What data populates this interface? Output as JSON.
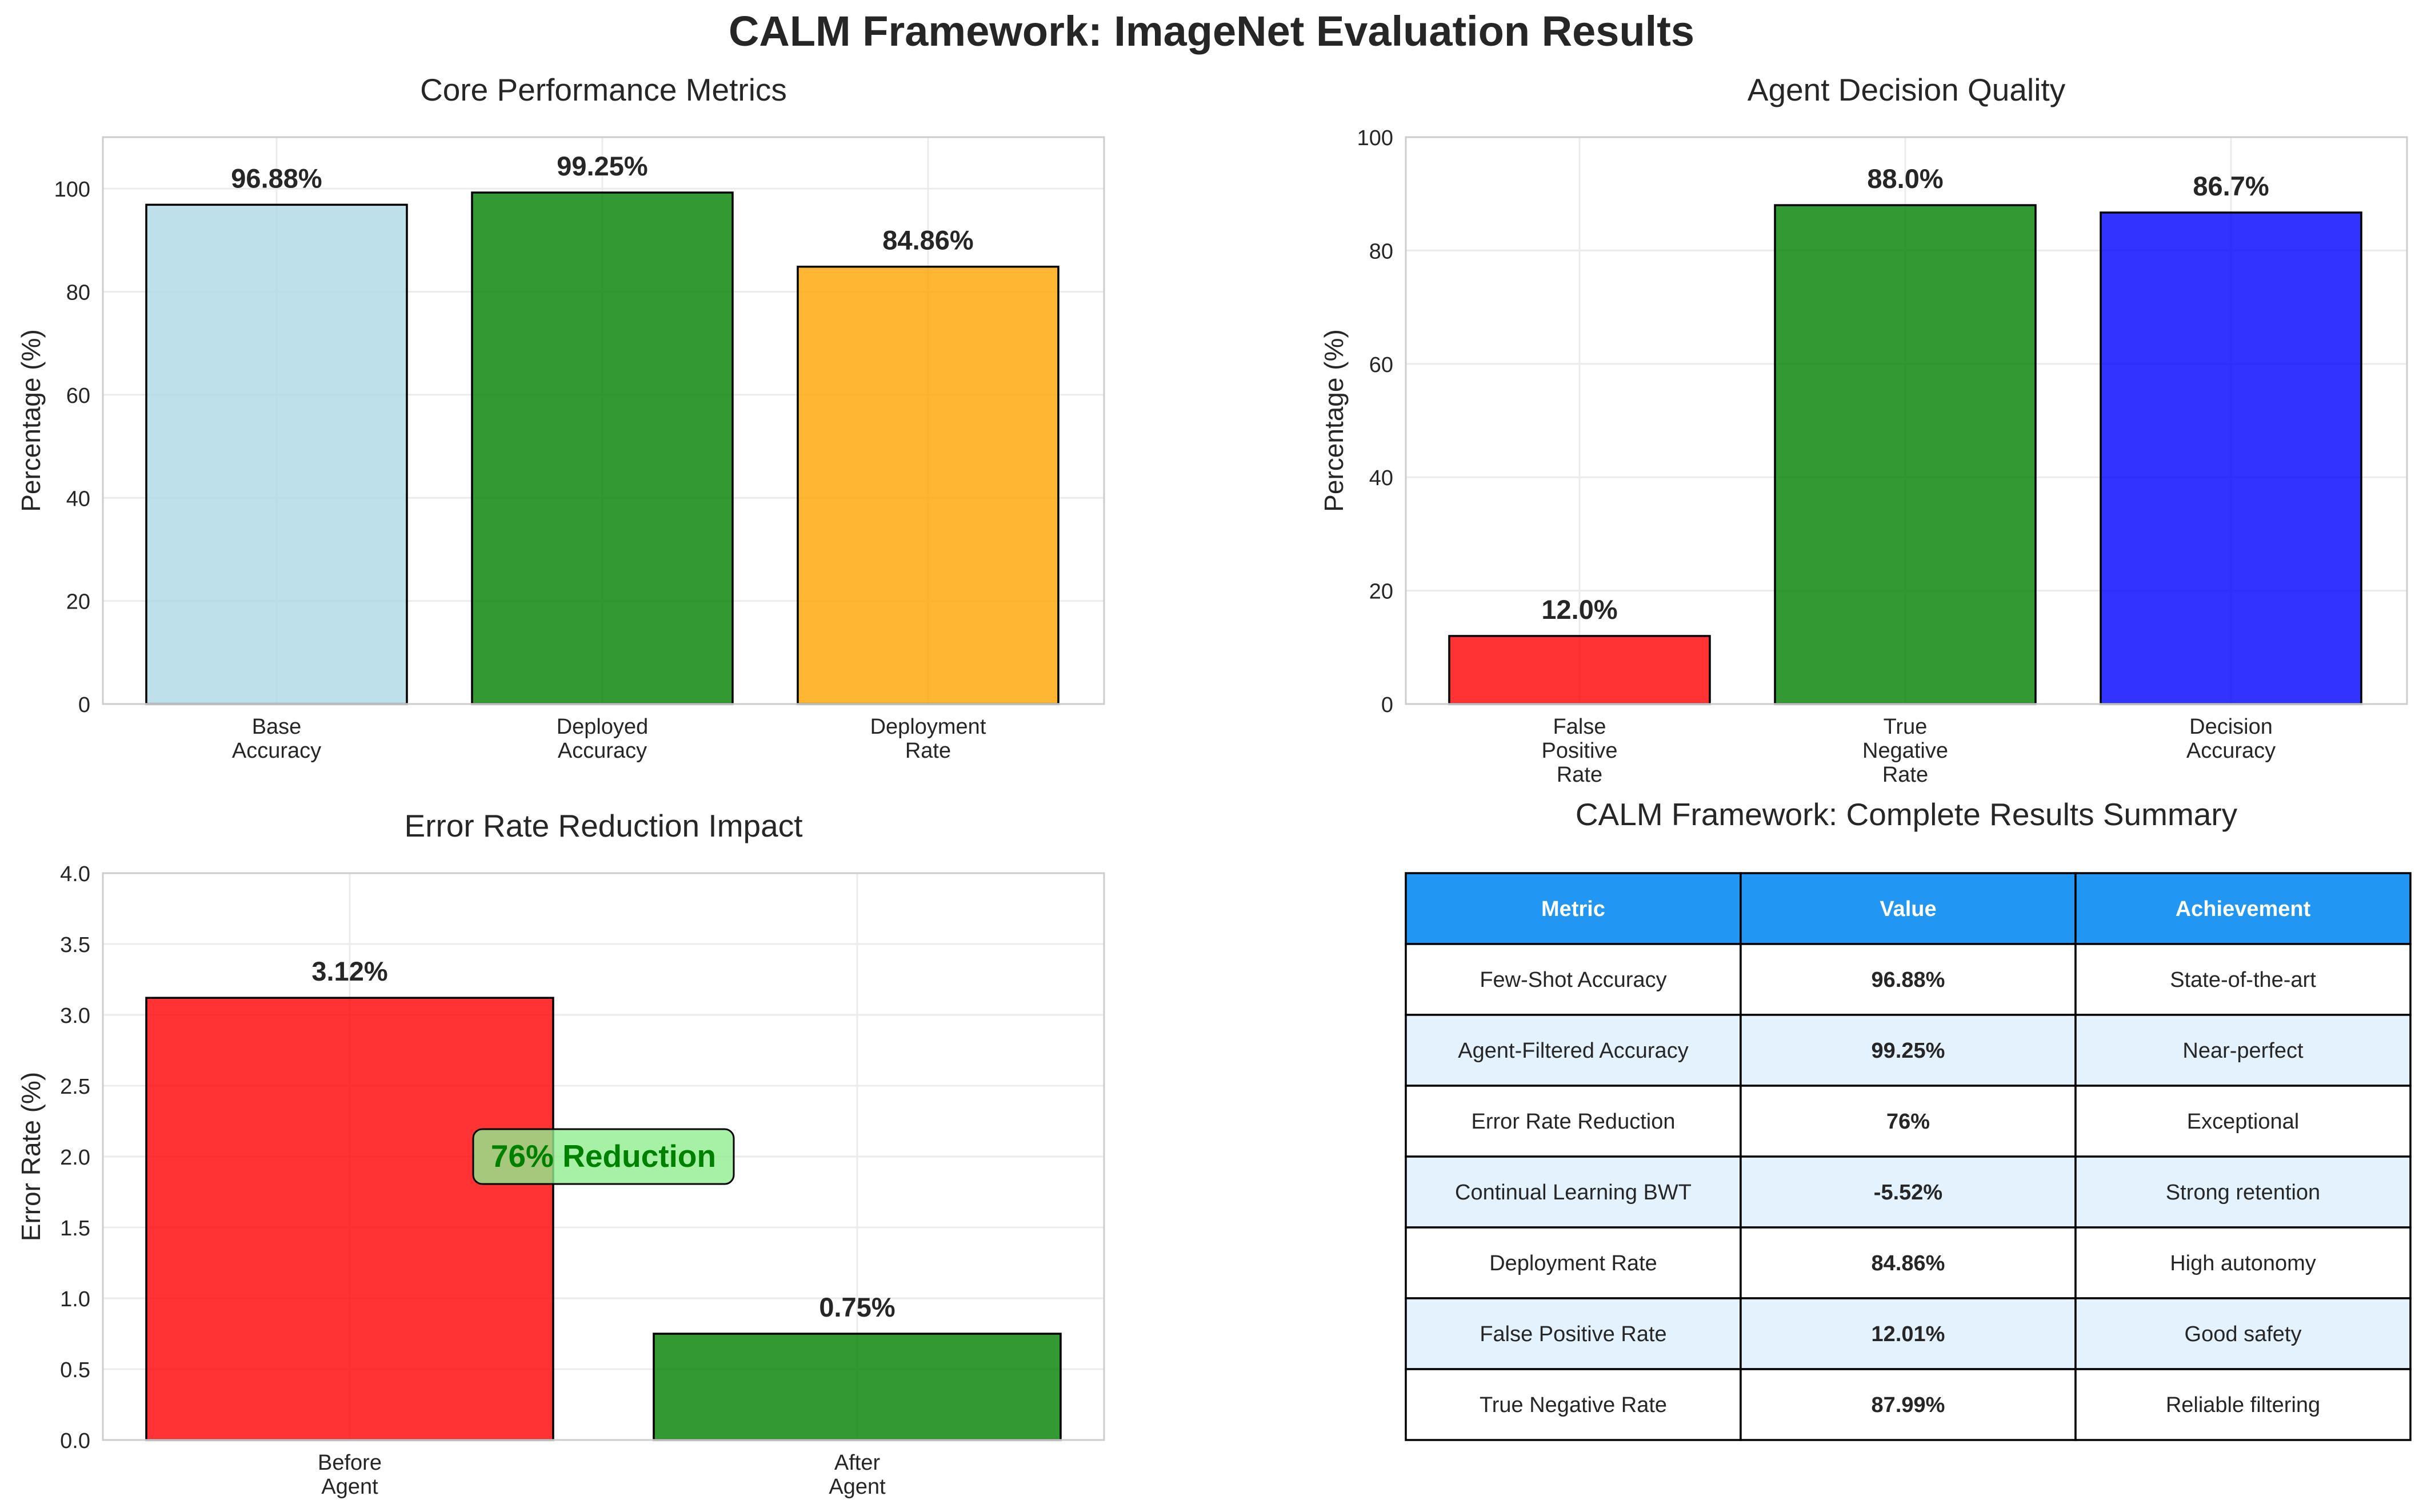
{
  "suptitle": "CALM Framework: ImageNet Evaluation Results",
  "chart_data": [
    {
      "id": "core",
      "type": "bar",
      "title": "Core Performance Metrics",
      "ylabel": "Percentage (%)",
      "xlabel": "",
      "ylim": [
        0,
        110
      ],
      "yticks": [
        0,
        20,
        40,
        60,
        80,
        100
      ],
      "grid": true,
      "categories": [
        "Base\nAccuracy",
        "Deployed\nAccuracy",
        "Deployment\nRate"
      ],
      "values": [
        96.88,
        99.25,
        84.86
      ],
      "labels": [
        "96.88%",
        "99.25%",
        "84.86%"
      ],
      "colors": [
        "#add8e6",
        "#008000",
        "#ffa500"
      ]
    },
    {
      "id": "agent",
      "type": "bar",
      "title": "Agent Decision Quality",
      "ylabel": "Percentage (%)",
      "xlabel": "",
      "ylim": [
        0,
        100
      ],
      "yticks": [
        0,
        20,
        40,
        60,
        80,
        100
      ],
      "grid": true,
      "categories": [
        "False\nPositive\nRate",
        "True\nNegative\nRate",
        "Decision\nAccuracy"
      ],
      "values": [
        12.0,
        88.0,
        86.7
      ],
      "labels": [
        "12.0%",
        "88.0%",
        "86.7%"
      ],
      "colors": [
        "#ff0000",
        "#008000",
        "#0000ff"
      ]
    },
    {
      "id": "error",
      "type": "bar",
      "title": "Error Rate Reduction Impact",
      "ylabel": "Error Rate (%)",
      "xlabel": "",
      "ylim": [
        0,
        4.0
      ],
      "yticks": [
        0.0,
        0.5,
        1.0,
        1.5,
        2.0,
        2.5,
        3.0,
        3.5,
        4.0
      ],
      "grid": true,
      "categories": [
        "Before\nAgent",
        "After\nAgent"
      ],
      "values": [
        3.12,
        0.75
      ],
      "labels": [
        "3.12%",
        "0.75%"
      ],
      "colors": [
        "#ff0000",
        "#008000"
      ],
      "annotation": {
        "text": "76% Reduction",
        "x": 0.5,
        "y": 2.0,
        "color": "#008000",
        "box_color": "#90ee90"
      }
    },
    {
      "id": "summary",
      "type": "table",
      "title": "CALM Framework: Complete Results Summary",
      "header_color": "#2196f3",
      "stripe_color": "#e3f2fd",
      "columns": [
        "Metric",
        "Value",
        "Achievement"
      ],
      "rows": [
        [
          "Few-Shot Accuracy",
          "96.88%",
          "State-of-the-art"
        ],
        [
          "Agent-Filtered Accuracy",
          "99.25%",
          "Near-perfect"
        ],
        [
          "Error Rate Reduction",
          "76%",
          "Exceptional"
        ],
        [
          "Continual Learning BWT",
          "-5.52%",
          "Strong retention"
        ],
        [
          "Deployment Rate",
          "84.86%",
          "High autonomy"
        ],
        [
          "False Positive Rate",
          "12.01%",
          "Good safety"
        ],
        [
          "True Negative Rate",
          "87.99%",
          "Reliable filtering"
        ]
      ]
    }
  ]
}
